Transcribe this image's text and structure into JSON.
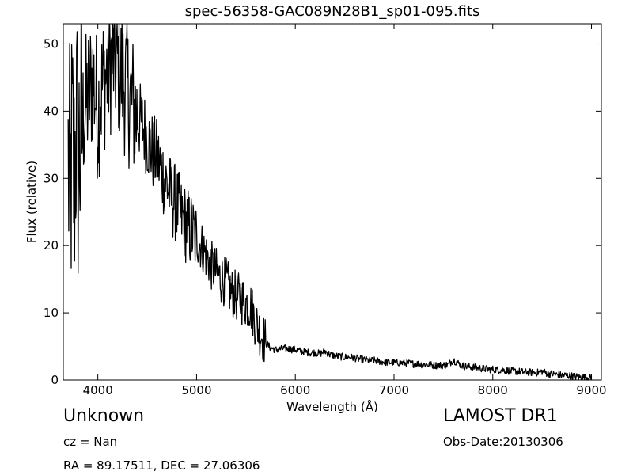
{
  "chart_data": {
    "type": "line",
    "title": "spec-56358-GAC089N28B1_sp01-095.fits",
    "xlabel": "Wavelength (Å)",
    "ylabel": "Flux (relative)",
    "xlim": [
      3650,
      9100
    ],
    "ylim": [
      0,
      53
    ],
    "xticks": [
      4000,
      5000,
      6000,
      7000,
      8000,
      9000
    ],
    "yticks": [
      0,
      10,
      20,
      30,
      40,
      50
    ],
    "grid": false,
    "series": [
      {
        "color": "#000000",
        "x": [
          3700,
          3720,
          3740,
          3760,
          3780,
          3800,
          3830,
          3860,
          3900,
          3950,
          4000,
          4050,
          4100,
          4150,
          4200,
          4250,
          4300,
          4350,
          4400,
          4450,
          4500,
          4550,
          4600,
          4650,
          4700,
          4750,
          4800,
          4850,
          4900,
          4950,
          5000,
          5050,
          5100,
          5150,
          5200,
          5250,
          5300,
          5350,
          5400,
          5450,
          5500,
          5550,
          5600,
          5650,
          5700,
          5750,
          5800,
          5850,
          5900,
          5950,
          6000,
          6050,
          6100,
          6150,
          6200,
          6250,
          6300,
          6350,
          6400,
          6450,
          6500,
          6550,
          6600,
          6650,
          6700,
          6750,
          6800,
          6850,
          6900,
          6950,
          7000,
          7050,
          7100,
          7150,
          7200,
          7250,
          7300,
          7350,
          7400,
          7450,
          7500,
          7550,
          7600,
          7650,
          7700,
          7750,
          7800,
          7850,
          7900,
          7950,
          8000,
          8050,
          8100,
          8150,
          8200,
          8250,
          8300,
          8350,
          8400,
          8450,
          8500,
          8550,
          8600,
          8650,
          8700,
          8750,
          8800,
          8850,
          8900,
          8950,
          9000
        ],
        "y": [
          32,
          27,
          35,
          29,
          38,
          33,
          36,
          40,
          42,
          45,
          40,
          44,
          46,
          48,
          47,
          45,
          43,
          41,
          39,
          38,
          36,
          34,
          33,
          31,
          29,
          27,
          26,
          24,
          23,
          22,
          21,
          20,
          18.5,
          17,
          16,
          15,
          14.5,
          13,
          12.5,
          12,
          11.5,
          11,
          8.5,
          7,
          5.5,
          4.8,
          4.5,
          4.6,
          4.7,
          4.6,
          4.5,
          4.3,
          4.2,
          4.0,
          4.1,
          3.9,
          4.3,
          3.8,
          3.6,
          3.5,
          3.4,
          3.4,
          3.3,
          3.1,
          3.0,
          2.9,
          2.9,
          2.8,
          2.7,
          2.6,
          2.6,
          2.6,
          2.5,
          2.5,
          2.4,
          2.4,
          2.3,
          2.3,
          2.2,
          2.2,
          2.2,
          2.3,
          3.0,
          2.5,
          2.1,
          2.0,
          1.9,
          1.8,
          1.7,
          1.6,
          1.6,
          1.5,
          1.5,
          1.4,
          1.3,
          1.3,
          1.2,
          1.2,
          1.1,
          1.1,
          1.3,
          1.0,
          0.9,
          0.8,
          0.7,
          0.7,
          0.6,
          0.5,
          0.4,
          0.4,
          0.3
        ]
      }
    ]
  },
  "info": {
    "object_class": "Unknown",
    "cz": "cz = Nan",
    "radec": "RA = 89.17511, DEC = 27.06306",
    "survey": "LAMOST DR1",
    "obs_date": "Obs-Date:20130306"
  }
}
